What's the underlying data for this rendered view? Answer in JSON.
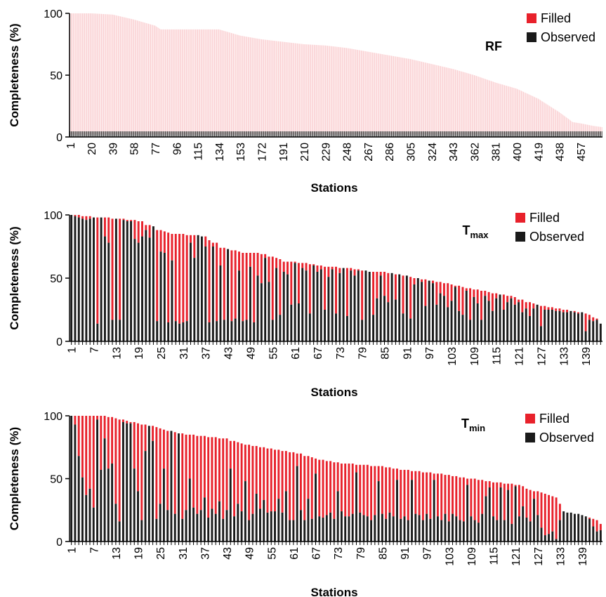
{
  "colors": {
    "filled": "#e8212b",
    "observed": "#1a1a1a",
    "axis": "#000000"
  },
  "chart_data": [
    {
      "type": "bar",
      "stacked": true,
      "title_main": "RF",
      "title_sub": "",
      "xlabel": "Stations",
      "ylabel": "Completeness (%)",
      "ylim": [
        0,
        100
      ],
      "yticks": [
        "0",
        "50",
        "100"
      ],
      "x_ticklabels": [
        "1",
        "20",
        "39",
        "58",
        "77",
        "96",
        "115",
        "134",
        "153",
        "172",
        "191",
        "210",
        "229",
        "248",
        "267",
        "286",
        "305",
        "324",
        "343",
        "362",
        "381",
        "400",
        "419",
        "438",
        "457"
      ],
      "n_stations": 476,
      "legend": [
        "Filled",
        "Observed"
      ],
      "legend_position": "top-right",
      "total_profile": [
        [
          1,
          100
        ],
        [
          20,
          100
        ],
        [
          39,
          99
        ],
        [
          58,
          95
        ],
        [
          77,
          90
        ],
        [
          82,
          87
        ],
        [
          96,
          87
        ],
        [
          115,
          87
        ],
        [
          134,
          87
        ],
        [
          153,
          82
        ],
        [
          172,
          79
        ],
        [
          191,
          77
        ],
        [
          210,
          75
        ],
        [
          229,
          74
        ],
        [
          248,
          72
        ],
        [
          267,
          69
        ],
        [
          286,
          66
        ],
        [
          305,
          63
        ],
        [
          324,
          59
        ],
        [
          343,
          55
        ],
        [
          362,
          50
        ],
        [
          381,
          44
        ],
        [
          400,
          39
        ],
        [
          419,
          31
        ],
        [
          438,
          20
        ],
        [
          450,
          12
        ],
        [
          457,
          11
        ],
        [
          468,
          9
        ],
        [
          476,
          8
        ]
      ],
      "observed_profile": [
        [
          1,
          2
        ],
        [
          476,
          2
        ]
      ]
    },
    {
      "type": "bar",
      "stacked": true,
      "title_main": "T",
      "title_sub": "max",
      "xlabel": "Stations",
      "ylabel": "Completeness (%)",
      "ylim": [
        0,
        100
      ],
      "yticks": [
        "0",
        "50",
        "100"
      ],
      "x_ticklabels": [
        "1",
        "7",
        "13",
        "19",
        "25",
        "31",
        "37",
        "43",
        "49",
        "55",
        "61",
        "67",
        "73",
        "79",
        "85",
        "91",
        "97",
        "103",
        "109",
        "115",
        "121",
        "127",
        "133",
        "139"
      ],
      "n_stations": 143,
      "legend": [
        "Filled",
        "Observed"
      ],
      "legend_position": "top-right",
      "total": [
        100,
        100,
        100,
        99,
        99,
        99,
        98,
        98,
        98,
        98,
        98,
        97,
        97,
        97,
        97,
        96,
        96,
        96,
        95,
        95,
        92,
        92,
        91,
        88,
        88,
        87,
        86,
        85,
        85,
        85,
        85,
        84,
        84,
        84,
        84,
        83,
        83,
        80,
        78,
        78,
        74,
        74,
        73,
        72,
        72,
        71,
        70,
        70,
        70,
        70,
        70,
        69,
        69,
        67,
        67,
        66,
        65,
        63,
        63,
        63,
        63,
        62,
        62,
        62,
        61,
        61,
        60,
        60,
        59,
        59,
        59,
        59,
        58,
        58,
        58,
        58,
        57,
        57,
        56,
        56,
        55,
        55,
        55,
        55,
        55,
        54,
        54,
        53,
        53,
        52,
        52,
        51,
        50,
        50,
        49,
        49,
        48,
        48,
        47,
        47,
        46,
        46,
        45,
        44,
        44,
        43,
        42,
        42,
        41,
        41,
        40,
        40,
        39,
        38,
        38,
        37,
        37,
        36,
        36,
        35,
        33,
        33,
        31,
        31,
        30,
        29,
        28,
        28,
        27,
        27,
        26,
        26,
        25,
        25,
        24,
        24,
        23,
        23,
        22,
        21,
        19,
        18,
        14
      ],
      "observed": [
        100,
        99,
        98,
        97,
        96,
        97,
        98,
        14,
        98,
        83,
        78,
        17,
        97,
        17,
        96,
        95,
        95,
        81,
        78,
        83,
        88,
        82,
        91,
        16,
        71,
        70,
        15,
        64,
        16,
        14,
        15,
        16,
        78,
        66,
        84,
        83,
        75,
        15,
        75,
        16,
        60,
        17,
        74,
        16,
        18,
        56,
        16,
        17,
        59,
        15,
        52,
        46,
        66,
        47,
        17,
        58,
        21,
        55,
        53,
        29,
        62,
        30,
        58,
        56,
        22,
        60,
        55,
        57,
        25,
        51,
        57,
        22,
        54,
        58,
        20,
        56,
        52,
        56,
        17,
        56,
        56,
        21,
        34,
        52,
        36,
        31,
        54,
        33,
        53,
        22,
        52,
        18,
        45,
        50,
        47,
        28,
        49,
        46,
        29,
        38,
        36,
        27,
        32,
        43,
        24,
        21,
        40,
        17,
        35,
        30,
        17,
        36,
        32,
        24,
        34,
        37,
        25,
        31,
        34,
        29,
        31,
        23,
        26,
        20,
        26,
        29,
        12,
        25,
        25,
        25,
        24,
        24,
        23,
        23,
        24,
        23,
        22,
        23,
        8,
        17,
        16,
        17,
        14
      ]
    },
    {
      "type": "bar",
      "stacked": true,
      "title_main": "T",
      "title_sub": "min",
      "xlabel": "Stations",
      "ylabel": "Completeness (%)",
      "ylim": [
        0,
        100
      ],
      "yticks": [
        "0",
        "50",
        "100"
      ],
      "x_ticklabels": [
        "1",
        "7",
        "13",
        "19",
        "25",
        "31",
        "37",
        "43",
        "49",
        "55",
        "61",
        "67",
        "73",
        "79",
        "85",
        "91",
        "97",
        "103",
        "109",
        "115",
        "121",
        "127",
        "133",
        "139"
      ],
      "n_stations": 144,
      "legend": [
        "Filled",
        "Observed"
      ],
      "legend_position": "top-right",
      "total": [
        100,
        100,
        100,
        100,
        100,
        100,
        100,
        100,
        100,
        100,
        99,
        99,
        98,
        97,
        97,
        96,
        95,
        95,
        94,
        93,
        93,
        92,
        92,
        91,
        90,
        89,
        88,
        88,
        87,
        86,
        86,
        85,
        85,
        85,
        84,
        84,
        84,
        83,
        83,
        83,
        82,
        82,
        82,
        80,
        80,
        79,
        78,
        77,
        77,
        76,
        76,
        75,
        75,
        74,
        74,
        73,
        73,
        72,
        72,
        71,
        71,
        70,
        70,
        68,
        68,
        67,
        66,
        65,
        65,
        64,
        64,
        63,
        63,
        62,
        62,
        62,
        62,
        61,
        61,
        61,
        61,
        60,
        60,
        60,
        60,
        59,
        59,
        58,
        58,
        57,
        57,
        57,
        56,
        56,
        56,
        55,
        55,
        55,
        54,
        54,
        54,
        53,
        53,
        52,
        52,
        51,
        51,
        50,
        50,
        50,
        49,
        49,
        48,
        48,
        47,
        47,
        47,
        46,
        46,
        46,
        45,
        45,
        44,
        42,
        41,
        40,
        40,
        39,
        38,
        37,
        36,
        35,
        30,
        24,
        23,
        23,
        22,
        22,
        21,
        20,
        19,
        18,
        17,
        14
      ],
      "observed": [
        100,
        93,
        68,
        51,
        37,
        42,
        27,
        97,
        57,
        82,
        58,
        62,
        30,
        16,
        95,
        94,
        94,
        58,
        40,
        17,
        72,
        95,
        80,
        18,
        30,
        58,
        25,
        92,
        22,
        89,
        18,
        25,
        50,
        27,
        22,
        25,
        35,
        19,
        26,
        22,
        32,
        18,
        25,
        58,
        20,
        30,
        24,
        48,
        17,
        22,
        38,
        26,
        33,
        23,
        24,
        24,
        34,
        23,
        40,
        17,
        17,
        60,
        25,
        17,
        34,
        18,
        54,
        20,
        19,
        21,
        23,
        18,
        40,
        24,
        20,
        20,
        22,
        55,
        23,
        21,
        20,
        17,
        21,
        48,
        22,
        18,
        23,
        20,
        49,
        18,
        20,
        17,
        49,
        22,
        21,
        17,
        22,
        18,
        49,
        20,
        17,
        22,
        16,
        22,
        20,
        17,
        16,
        45,
        20,
        17,
        15,
        22,
        36,
        43,
        20,
        17,
        43,
        17,
        41,
        14,
        44,
        20,
        28,
        19,
        16,
        34,
        21,
        11,
        5,
        6,
        8,
        2,
        17,
        24,
        23,
        23,
        22,
        22,
        21,
        20,
        18,
        12,
        8,
        9
      ]
    }
  ]
}
